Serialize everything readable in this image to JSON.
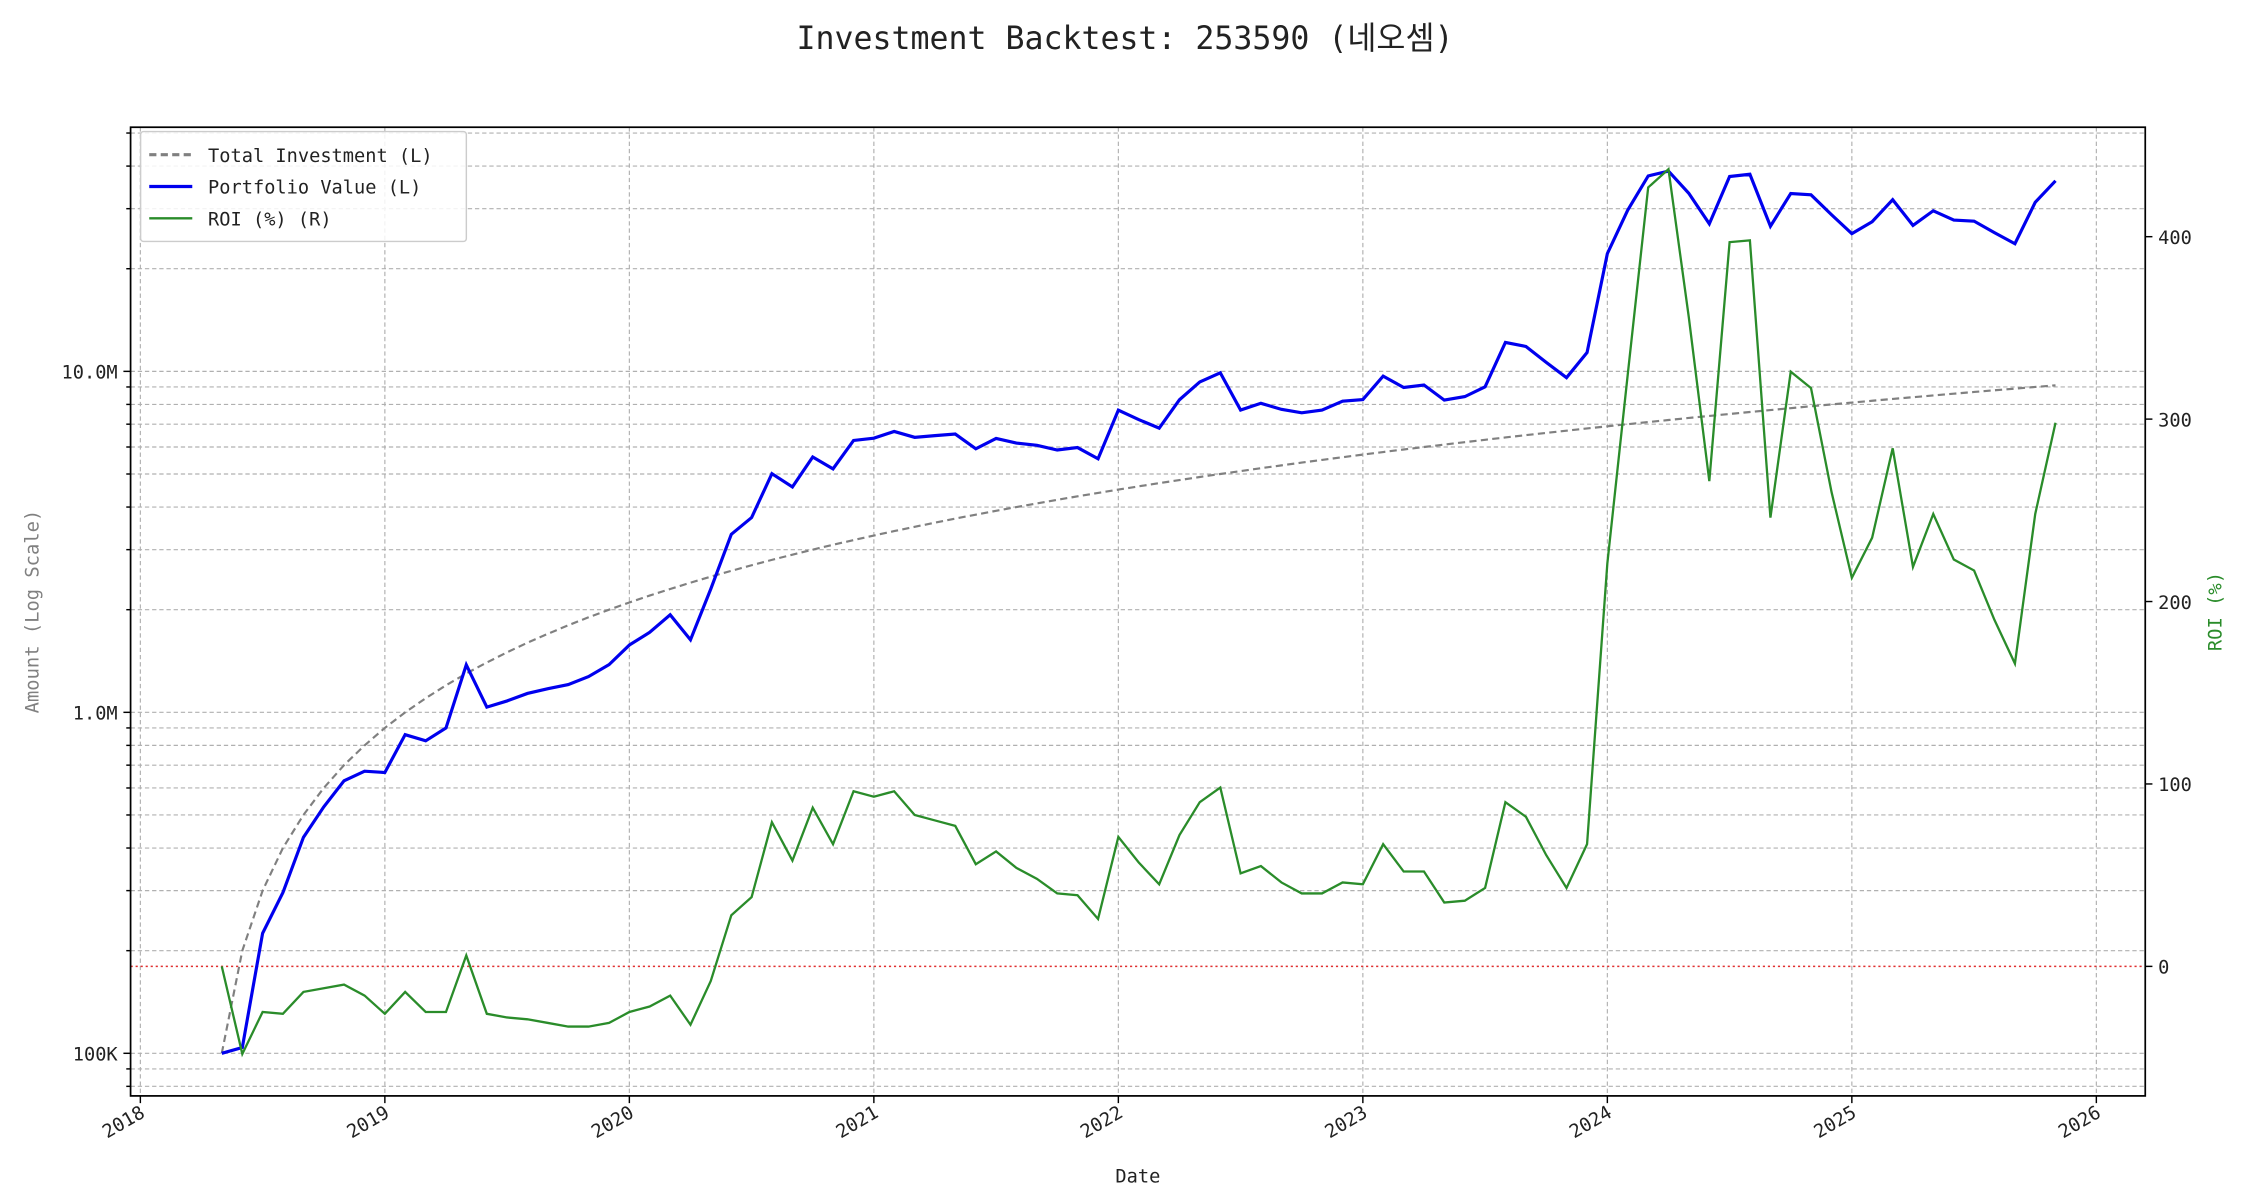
{
  "chart_data": {
    "type": "line",
    "title": "Investment Backtest: 253590 (네오셈)",
    "x_label": "Date",
    "y_label": "Amount (Log Scale)",
    "y2_label": "ROI (%)",
    "x": [
      2018.333,
      2018.417,
      2018.5,
      2018.583,
      2018.667,
      2018.75,
      2018.833,
      2018.917,
      2019.0,
      2019.083,
      2019.167,
      2019.25,
      2019.333,
      2019.417,
      2019.5,
      2019.583,
      2019.667,
      2019.75,
      2019.833,
      2019.917,
      2020.0,
      2020.083,
      2020.167,
      2020.25,
      2020.333,
      2020.417,
      2020.5,
      2020.583,
      2020.667,
      2020.75,
      2020.833,
      2020.917,
      2021.0,
      2021.083,
      2021.167,
      2021.25,
      2021.333,
      2021.417,
      2021.5,
      2021.583,
      2021.667,
      2021.75,
      2021.833,
      2021.917,
      2022.0,
      2022.083,
      2022.167,
      2022.25,
      2022.333,
      2022.417,
      2022.5,
      2022.583,
      2022.667,
      2022.75,
      2022.833,
      2022.917,
      2023.0,
      2023.083,
      2023.167,
      2023.25,
      2023.333,
      2023.417,
      2023.5,
      2023.583,
      2023.667,
      2023.75,
      2023.833,
      2023.917,
      2024.0,
      2024.083,
      2024.167,
      2024.25,
      2024.333,
      2024.417,
      2024.5,
      2024.583,
      2024.667,
      2024.75,
      2024.833,
      2024.917,
      2025.0,
      2025.083,
      2025.167,
      2025.25,
      2025.333,
      2025.417,
      2025.5,
      2025.583,
      2025.667,
      2025.75,
      2025.833
    ],
    "xlim": [
      2017.96,
      2026.2
    ],
    "xticks": [
      2018,
      2019,
      2020,
      2021,
      2022,
      2023,
      2024,
      2025,
      2026
    ],
    "yscale": "log",
    "ylim": [
      75000,
      52000000
    ],
    "yticks": [
      {
        "value": 100000,
        "label": "100K"
      },
      {
        "value": 1000000,
        "label": "1.0M"
      },
      {
        "value": 10000000,
        "label": "10.0M"
      }
    ],
    "yminorticks": [
      80000,
      90000,
      200000,
      300000,
      400000,
      500000,
      600000,
      700000,
      800000,
      900000,
      2000000,
      3000000,
      4000000,
      5000000,
      6000000,
      7000000,
      8000000,
      9000000,
      20000000,
      30000000,
      40000000,
      50000000
    ],
    "y2lim": [
      -71,
      460
    ],
    "y2ticks": [
      0,
      100,
      200,
      300,
      400
    ],
    "grid": true,
    "legend": "upper left",
    "hline": {
      "axis": "y2",
      "value": 0,
      "color": "#e03030"
    },
    "series": [
      {
        "name": "Total Investment (L)",
        "color": "#808080",
        "linestyle": "dashed",
        "values": [
          100000,
          200000,
          300000,
          400000,
          500000,
          600000,
          700000,
          800000,
          900000,
          1000000,
          1100000,
          1200000,
          1300000,
          1400000,
          1500000,
          1600000,
          1700000,
          1800000,
          1900000,
          2000000,
          2100000,
          2200000,
          2300000,
          2400000,
          2500000,
          2600000,
          2700000,
          2800000,
          2900000,
          3000000,
          3100000,
          3200000,
          3300000,
          3400000,
          3500000,
          3600000,
          3700000,
          3800000,
          3900000,
          4000000,
          4100000,
          4200000,
          4300000,
          4400000,
          4500000,
          4600000,
          4700000,
          4800000,
          4900000,
          5000000,
          5100000,
          5200000,
          5300000,
          5400000,
          5500000,
          5600000,
          5700000,
          5800000,
          5900000,
          6000000,
          6100000,
          6200000,
          6300000,
          6400000,
          6500000,
          6600000,
          6700000,
          6800000,
          6900000,
          7000000,
          7100000,
          7200000,
          7300000,
          7400000,
          7500000,
          7600000,
          7700000,
          7800000,
          7900000,
          8000000,
          8100000,
          8200000,
          8300000,
          8400000,
          8500000,
          8600000,
          8700000,
          8800000,
          8900000,
          9000000,
          9100000
        ]
      },
      {
        "name": "Portfolio Value (L)",
        "color": "#0000ee",
        "linestyle": "solid",
        "values": [
          100000,
          104000,
          225000,
          296000,
          430000,
          528000,
          630000,
          672000,
          666000,
          860000,
          825000,
          900000,
          1378000,
          1036000,
          1080000,
          1136000,
          1173000,
          1206000,
          1273000,
          1380000,
          1575000,
          1716000,
          1932000,
          1632000,
          2300000,
          3328000,
          3726000,
          5012000,
          4582000,
          5610000,
          5177000,
          6272000,
          6369000,
          6664000,
          6405000,
          6480000,
          6549000,
          5928000,
          6357000,
          6160000,
          6068000,
          5880000,
          5977000,
          5544000,
          7695000,
          7222000,
          6815000,
          8256000,
          9310000,
          9900000,
          7701000,
          8060000,
          7738000,
          7560000,
          7700000,
          8176000,
          8265000,
          9686000,
          8968000,
          9120000,
          8235000,
          8432000,
          9009000,
          12160000,
          11830000,
          10626000,
          9581000,
          11356000,
          22149000,
          29680000,
          37417000,
          38664000,
          33288000,
          27084000,
          37275000,
          37848000,
          26642000,
          33228000,
          32943000,
          28800000,
          25353000,
          27470000,
          31872000,
          26796000,
          29580000,
          27778000,
          27579000,
          25520000,
          23674000,
          31320000,
          36218000
        ]
      },
      {
        "name": "ROI (%) (R)",
        "color": "#2a8c2a",
        "linestyle": "solid",
        "axis": "y2",
        "values": [
          0,
          -48,
          -25,
          -26,
          -14,
          -12,
          -10,
          -16,
          -26,
          -14,
          -25,
          -25,
          6,
          -26,
          -28,
          -29,
          -31,
          -33,
          -33,
          -31,
          -25,
          -22,
          -16,
          -32,
          -8,
          28,
          38,
          79,
          58,
          87,
          67,
          96,
          93,
          96,
          83,
          80,
          77,
          56,
          63,
          54,
          48,
          40,
          39,
          26,
          71,
          57,
          45,
          72,
          90,
          98,
          51,
          55,
          46,
          40,
          40,
          46,
          45,
          67,
          52,
          52,
          35,
          36,
          43,
          90,
          82,
          61,
          43,
          67,
          221,
          324,
          427,
          437,
          356,
          266,
          397,
          398,
          246,
          326,
          317,
          260,
          213,
          235,
          284,
          219,
          248,
          223,
          217,
          190,
          166,
          248,
          298
        ]
      }
    ]
  }
}
